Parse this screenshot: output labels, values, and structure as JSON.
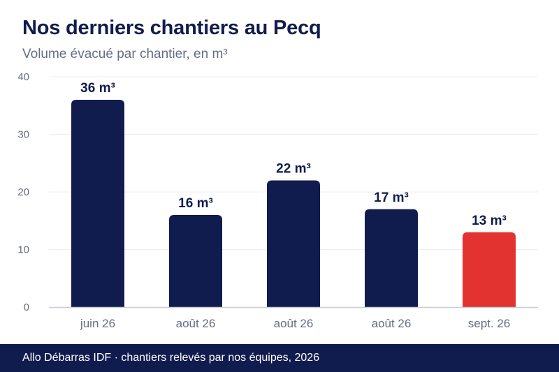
{
  "header": {
    "title": "Nos derniers chantiers au Pecq",
    "subtitle": "Volume évacué par chantier, en m³"
  },
  "footer": {
    "text": "Allo Débarras IDF · chantiers relevés par nos équipes, 2026"
  },
  "chart_data": {
    "type": "bar",
    "title": "Nos derniers chantiers au Pecq",
    "subtitle": "Volume évacué par chantier, en m³",
    "categories": [
      "juin 26",
      "août 26",
      "août 26",
      "août 26",
      "sept. 26"
    ],
    "values": [
      36,
      16,
      22,
      17,
      13
    ],
    "data_labels": [
      "36 m³",
      "16 m³",
      "22 m³",
      "17 m³",
      "13 m³"
    ],
    "ylim": [
      0,
      40
    ],
    "yticks": [
      0,
      10,
      20,
      30,
      40
    ],
    "grid": true,
    "colors": {
      "bar": "#111c4e",
      "highlight": "#e33330",
      "label": "#111c4e",
      "tick": "#666c85",
      "grid": "#ececf2",
      "axis": "#c9cbd8"
    },
    "highlight_index": 4
  }
}
